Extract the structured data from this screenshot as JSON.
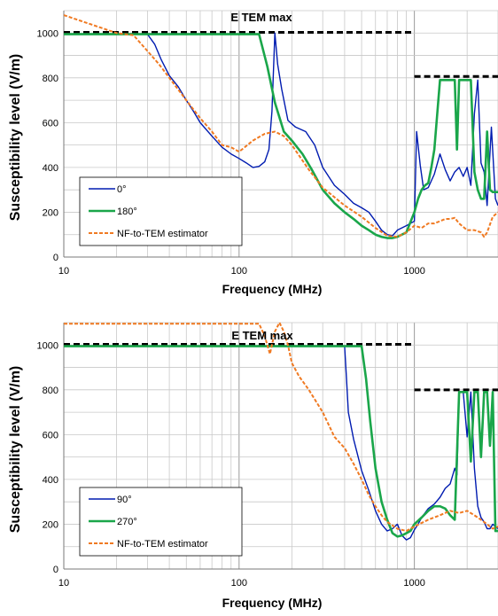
{
  "chart_data": [
    {
      "type": "line",
      "xlabel": "Frequency (MHz)",
      "ylabel": "Susceptibility level  (V/m)",
      "xscale": "log",
      "xlim": [
        10,
        3000
      ],
      "ylim": [
        0,
        1100
      ],
      "xticks": [
        10,
        100,
        1000
      ],
      "yticks": [
        0,
        200,
        400,
        600,
        800,
        1000
      ],
      "grid": true,
      "legend_position": "bottom-left",
      "annotations": [
        {
          "text": "E TEM max"
        }
      ],
      "series": [
        {
          "name": "",
          "color": "#000000",
          "style": "dashed",
          "points": [
            [
              10,
              1003
            ],
            [
              1000,
              1003
            ]
          ]
        },
        {
          "name": "",
          "color": "#000000",
          "style": "dashed",
          "points": [
            [
              1000,
              806
            ],
            [
              3000,
              806
            ]
          ]
        },
        {
          "name": "0°",
          "color": "#001BB0",
          "style": "solid",
          "points": [
            [
              10,
              995
            ],
            [
              30,
              995
            ],
            [
              33,
              950
            ],
            [
              36,
              880
            ],
            [
              40,
              810
            ],
            [
              45,
              760
            ],
            [
              50,
              700
            ],
            [
              55,
              650
            ],
            [
              60,
              600
            ],
            [
              70,
              540
            ],
            [
              80,
              490
            ],
            [
              90,
              460
            ],
            [
              100,
              440
            ],
            [
              110,
              420
            ],
            [
              120,
              400
            ],
            [
              130,
              405
            ],
            [
              140,
              425
            ],
            [
              148,
              480
            ],
            [
              154,
              650
            ],
            [
              160,
              1000
            ],
            [
              166,
              860
            ],
            [
              175,
              750
            ],
            [
              190,
              610
            ],
            [
              210,
              580
            ],
            [
              240,
              560
            ],
            [
              270,
              500
            ],
            [
              300,
              400
            ],
            [
              350,
              320
            ],
            [
              400,
              280
            ],
            [
              450,
              240
            ],
            [
              500,
              220
            ],
            [
              550,
              200
            ],
            [
              600,
              160
            ],
            [
              650,
              120
            ],
            [
              700,
              100
            ],
            [
              750,
              95
            ],
            [
              800,
              120
            ],
            [
              900,
              140
            ],
            [
              1000,
              160
            ],
            [
              1030,
              560
            ],
            [
              1080,
              410
            ],
            [
              1130,
              300
            ],
            [
              1200,
              310
            ],
            [
              1300,
              370
            ],
            [
              1400,
              460
            ],
            [
              1500,
              390
            ],
            [
              1600,
              340
            ],
            [
              1700,
              380
            ],
            [
              1800,
              400
            ],
            [
              1900,
              360
            ],
            [
              2000,
              400
            ],
            [
              2100,
              320
            ],
            [
              2200,
              640
            ],
            [
              2300,
              790
            ],
            [
              2400,
              420
            ],
            [
              2500,
              380
            ],
            [
              2600,
              230
            ],
            [
              2750,
              580
            ],
            [
              2900,
              260
            ],
            [
              3000,
              230
            ]
          ]
        },
        {
          "name": "180°",
          "color": "#1AA64A",
          "style": "solid",
          "points": [
            [
              10,
              995
            ],
            [
              130,
              995
            ],
            [
              145,
              850
            ],
            [
              160,
              690
            ],
            [
              180,
              560
            ],
            [
              200,
              520
            ],
            [
              230,
              460
            ],
            [
              260,
              390
            ],
            [
              300,
              300
            ],
            [
              350,
              240
            ],
            [
              400,
              200
            ],
            [
              450,
              170
            ],
            [
              500,
              140
            ],
            [
              550,
              120
            ],
            [
              600,
              100
            ],
            [
              650,
              90
            ],
            [
              700,
              85
            ],
            [
              750,
              85
            ],
            [
              800,
              90
            ],
            [
              900,
              110
            ],
            [
              1000,
              200
            ],
            [
              1050,
              260
            ],
            [
              1100,
              300
            ],
            [
              1150,
              320
            ],
            [
              1200,
              330
            ],
            [
              1250,
              400
            ],
            [
              1300,
              480
            ],
            [
              1400,
              790
            ],
            [
              1600,
              790
            ],
            [
              1700,
              790
            ],
            [
              1750,
              480
            ],
            [
              1800,
              790
            ],
            [
              1900,
              790
            ],
            [
              2000,
              790
            ],
            [
              2100,
              790
            ],
            [
              2200,
              380
            ],
            [
              2300,
              300
            ],
            [
              2400,
              260
            ],
            [
              2500,
              260
            ],
            [
              2600,
              560
            ],
            [
              2700,
              300
            ],
            [
              2800,
              290
            ],
            [
              3000,
              290
            ]
          ]
        },
        {
          "name": "NF-to-TEM estimator",
          "color": "#F07A22",
          "style": "dashed",
          "points": [
            [
              10,
              1080
            ],
            [
              20,
              1000
            ],
            [
              25,
              990
            ],
            [
              30,
              920
            ],
            [
              35,
              860
            ],
            [
              40,
              800
            ],
            [
              50,
              700
            ],
            [
              60,
              620
            ],
            [
              70,
              560
            ],
            [
              80,
              500
            ],
            [
              90,
              490
            ],
            [
              100,
              470
            ],
            [
              120,
              520
            ],
            [
              140,
              550
            ],
            [
              160,
              560
            ],
            [
              180,
              540
            ],
            [
              200,
              500
            ],
            [
              250,
              390
            ],
            [
              300,
              310
            ],
            [
              400,
              230
            ],
            [
              500,
              180
            ],
            [
              600,
              130
            ],
            [
              700,
              95
            ],
            [
              800,
              90
            ],
            [
              900,
              110
            ],
            [
              1000,
              140
            ],
            [
              1100,
              130
            ],
            [
              1200,
              150
            ],
            [
              1300,
              150
            ],
            [
              1400,
              160
            ],
            [
              1500,
              170
            ],
            [
              1600,
              170
            ],
            [
              1700,
              175
            ],
            [
              1800,
              150
            ],
            [
              2000,
              120
            ],
            [
              2200,
              120
            ],
            [
              2400,
              110
            ],
            [
              2500,
              90
            ],
            [
              2600,
              110
            ],
            [
              2800,
              180
            ],
            [
              3000,
              200
            ]
          ]
        }
      ]
    },
    {
      "type": "line",
      "xlabel": "Frequency (MHz)",
      "ylabel": "Susceptibility level  (V/m)",
      "xscale": "log",
      "xlim": [
        10,
        3000
      ],
      "ylim": [
        0,
        1100
      ],
      "xticks": [
        10,
        100,
        1000
      ],
      "yticks": [
        0,
        200,
        400,
        600,
        800,
        1000
      ],
      "grid": true,
      "legend_position": "bottom-left",
      "annotations": [
        {
          "text": "E TEM max"
        }
      ],
      "series": [
        {
          "name": "",
          "color": "#000000",
          "style": "dashed",
          "points": [
            [
              10,
              1003
            ],
            [
              1000,
              1003
            ]
          ]
        },
        {
          "name": "",
          "color": "#000000",
          "style": "dashed",
          "points": [
            [
              1000,
              800
            ],
            [
              3000,
              800
            ]
          ]
        },
        {
          "name": "90°",
          "color": "#001BB0",
          "style": "solid",
          "points": [
            [
              10,
              995
            ],
            [
              400,
              995
            ],
            [
              410,
              850
            ],
            [
              420,
              700
            ],
            [
              450,
              580
            ],
            [
              500,
              440
            ],
            [
              550,
              350
            ],
            [
              600,
              260
            ],
            [
              650,
              200
            ],
            [
              700,
              170
            ],
            [
              750,
              180
            ],
            [
              800,
              200
            ],
            [
              850,
              150
            ],
            [
              900,
              130
            ],
            [
              950,
              140
            ],
            [
              1000,
              175
            ],
            [
              1050,
              200
            ],
            [
              1100,
              230
            ],
            [
              1200,
              270
            ],
            [
              1300,
              290
            ],
            [
              1400,
              320
            ],
            [
              1500,
              360
            ],
            [
              1600,
              380
            ],
            [
              1700,
              450
            ],
            [
              1750,
              420
            ],
            [
              1800,
              790
            ],
            [
              1900,
              790
            ],
            [
              2000,
              590
            ],
            [
              2100,
              790
            ],
            [
              2200,
              450
            ],
            [
              2300,
              280
            ],
            [
              2400,
              230
            ],
            [
              2500,
              210
            ],
            [
              2600,
              180
            ],
            [
              2700,
              180
            ],
            [
              2800,
              200
            ],
            [
              2900,
              190
            ],
            [
              3000,
              180
            ]
          ]
        },
        {
          "name": "270°",
          "color": "#1AA64A",
          "style": "solid",
          "points": [
            [
              10,
              995
            ],
            [
              500,
              995
            ],
            [
              530,
              850
            ],
            [
              560,
              660
            ],
            [
              600,
              450
            ],
            [
              650,
              300
            ],
            [
              700,
              220
            ],
            [
              750,
              160
            ],
            [
              800,
              145
            ],
            [
              850,
              150
            ],
            [
              900,
              160
            ],
            [
              950,
              170
            ],
            [
              1000,
              200
            ],
            [
              1100,
              230
            ],
            [
              1200,
              260
            ],
            [
              1300,
              280
            ],
            [
              1400,
              280
            ],
            [
              1500,
              270
            ],
            [
              1600,
              240
            ],
            [
              1700,
              220
            ],
            [
              1800,
              790
            ],
            [
              1900,
              790
            ],
            [
              2000,
              790
            ],
            [
              2100,
              480
            ],
            [
              2200,
              790
            ],
            [
              2300,
              790
            ],
            [
              2400,
              500
            ],
            [
              2500,
              790
            ],
            [
              2600,
              790
            ],
            [
              2700,
              550
            ],
            [
              2800,
              790
            ],
            [
              2900,
              170
            ],
            [
              3000,
              170
            ]
          ]
        },
        {
          "name": "NF-to-TEM estimator",
          "color": "#F07A22",
          "style": "dashed",
          "points": [
            [
              10,
              1095
            ],
            [
              130,
              1095
            ],
            [
              140,
              1040
            ],
            [
              150,
              960
            ],
            [
              160,
              1060
            ],
            [
              170,
              1100
            ],
            [
              180,
              1060
            ],
            [
              190,
              1000
            ],
            [
              200,
              920
            ],
            [
              220,
              860
            ],
            [
              250,
              800
            ],
            [
              300,
              700
            ],
            [
              350,
              590
            ],
            [
              400,
              540
            ],
            [
              450,
              470
            ],
            [
              500,
              400
            ],
            [
              550,
              330
            ],
            [
              600,
              280
            ],
            [
              650,
              240
            ],
            [
              700,
              210
            ],
            [
              800,
              180
            ],
            [
              900,
              170
            ],
            [
              1000,
              190
            ],
            [
              1200,
              220
            ],
            [
              1400,
              240
            ],
            [
              1600,
              260
            ],
            [
              1800,
              250
            ],
            [
              2000,
              260
            ],
            [
              2200,
              240
            ],
            [
              2400,
              220
            ],
            [
              2600,
              200
            ],
            [
              2800,
              180
            ],
            [
              3000,
              190
            ]
          ]
        }
      ]
    }
  ]
}
